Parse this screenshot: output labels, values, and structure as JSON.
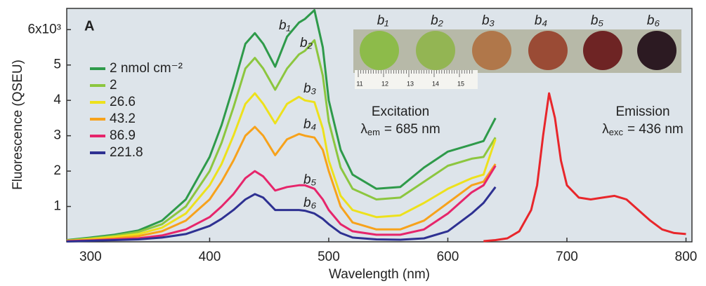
{
  "chart_data": {
    "type": "line",
    "ylabel": "Fluorescence (QSEU)",
    "xlabel": "Wavelength (nm)",
    "xlim": [
      280,
      805
    ],
    "xticks": [
      300,
      400,
      500,
      600,
      700,
      800
    ],
    "ylim": [
      0,
      6.6
    ],
    "yticks": [
      1,
      2,
      3,
      4,
      5,
      {
        "value": 6,
        "label": "6x10³"
      }
    ],
    "panel_label": "A",
    "curve_labels": [
      "b₁",
      "b₂",
      "b₃",
      "b₄",
      "b₅",
      "b₆"
    ],
    "excitation": {
      "title": "Excitation",
      "symbol": "λ",
      "subscript": "em",
      "value": "= 685 nm"
    },
    "emission": {
      "title": "Emission",
      "symbol": "λ",
      "subscript": "exc",
      "value": "= 436 nm"
    },
    "inset": {
      "labels": [
        "b₁",
        "b₂",
        "b₃",
        "b₄",
        "b₅",
        "b₆"
      ],
      "ruler_labels": [
        "11",
        "12",
        "13",
        "14",
        "15"
      ]
    },
    "series": [
      {
        "name": "2 nmol cm⁻²",
        "color": "#2e9a4a",
        "x": [
          280,
          300,
          320,
          340,
          360,
          380,
          400,
          410,
          420,
          430,
          438,
          445,
          455,
          465,
          475,
          480,
          488,
          495,
          500,
          510,
          520,
          540,
          560,
          580,
          600,
          620,
          630,
          640
        ],
        "values": [
          0.05,
          0.12,
          0.2,
          0.32,
          0.6,
          1.2,
          2.4,
          3.3,
          4.4,
          5.6,
          5.9,
          5.6,
          4.95,
          5.8,
          6.2,
          6.3,
          6.55,
          5.5,
          4.0,
          2.6,
          1.9,
          1.5,
          1.55,
          2.1,
          2.55,
          2.75,
          2.85,
          3.5
        ]
      },
      {
        "name": "2",
        "color": "#8cc63f",
        "x": [
          280,
          300,
          320,
          340,
          360,
          380,
          400,
          410,
          420,
          430,
          438,
          445,
          455,
          465,
          475,
          480,
          488,
          495,
          500,
          510,
          520,
          540,
          560,
          580,
          600,
          620,
          630,
          640
        ],
        "values": [
          0.04,
          0.1,
          0.17,
          0.28,
          0.5,
          1.0,
          2.0,
          2.8,
          3.8,
          4.9,
          5.2,
          4.9,
          4.3,
          4.9,
          5.3,
          5.4,
          5.7,
          4.7,
          3.4,
          2.1,
          1.5,
          1.2,
          1.25,
          1.7,
          2.15,
          2.35,
          2.4,
          2.95
        ]
      },
      {
        "name": "26.6",
        "color": "#ede11c",
        "x": [
          280,
          300,
          320,
          340,
          360,
          380,
          400,
          410,
          420,
          430,
          438,
          445,
          455,
          465,
          475,
          480,
          488,
          495,
          500,
          510,
          520,
          540,
          560,
          580,
          600,
          620,
          630,
          640
        ],
        "values": [
          0.03,
          0.08,
          0.14,
          0.22,
          0.4,
          0.8,
          1.6,
          2.2,
          3.0,
          3.9,
          4.2,
          3.9,
          3.35,
          3.9,
          4.1,
          4.0,
          3.95,
          3.2,
          2.3,
          1.3,
          0.9,
          0.7,
          0.75,
          1.1,
          1.5,
          1.8,
          1.9,
          2.9
        ]
      },
      {
        "name": "43.2",
        "color": "#f7a21b",
        "x": [
          280,
          300,
          320,
          340,
          360,
          380,
          400,
          410,
          420,
          430,
          438,
          445,
          455,
          465,
          475,
          480,
          488,
          495,
          500,
          510,
          520,
          540,
          560,
          580,
          600,
          620,
          630,
          640
        ],
        "values": [
          0.03,
          0.06,
          0.1,
          0.16,
          0.3,
          0.6,
          1.2,
          1.7,
          2.3,
          3.0,
          3.25,
          3.0,
          2.45,
          2.9,
          3.05,
          3.0,
          2.95,
          2.6,
          2.0,
          1.0,
          0.55,
          0.35,
          0.35,
          0.6,
          1.1,
          1.6,
          1.7,
          2.2
        ]
      },
      {
        "name": "86.9",
        "color": "#e6256b",
        "x": [
          280,
          300,
          320,
          340,
          360,
          380,
          400,
          410,
          420,
          430,
          438,
          445,
          455,
          465,
          475,
          480,
          488,
          495,
          500,
          510,
          520,
          540,
          560,
          580,
          600,
          620,
          630,
          640
        ],
        "values": [
          0.02,
          0.04,
          0.07,
          0.1,
          0.18,
          0.35,
          0.7,
          1.0,
          1.35,
          1.8,
          2.0,
          1.85,
          1.45,
          1.55,
          1.6,
          1.6,
          1.5,
          1.2,
          0.9,
          0.5,
          0.3,
          0.2,
          0.2,
          0.35,
          0.8,
          1.4,
          1.6,
          2.15
        ]
      },
      {
        "name": "221.8",
        "color": "#2e3192",
        "x": [
          280,
          300,
          320,
          340,
          360,
          380,
          400,
          410,
          420,
          430,
          438,
          445,
          455,
          465,
          475,
          480,
          488,
          495,
          500,
          510,
          520,
          540,
          560,
          580,
          600,
          620,
          630,
          640
        ],
        "values": [
          0.01,
          0.03,
          0.05,
          0.07,
          0.12,
          0.22,
          0.45,
          0.65,
          0.9,
          1.2,
          1.35,
          1.25,
          0.9,
          0.9,
          0.9,
          0.88,
          0.8,
          0.65,
          0.5,
          0.25,
          0.12,
          0.07,
          0.06,
          0.1,
          0.3,
          0.8,
          1.1,
          1.55
        ]
      },
      {
        "color": "#e8262b",
        "x": [
          630,
          640,
          650,
          660,
          670,
          675,
          680,
          685,
          690,
          695,
          700,
          710,
          720,
          730,
          740,
          750,
          760,
          770,
          780,
          790,
          800
        ],
        "values": [
          0.02,
          0.05,
          0.1,
          0.3,
          0.9,
          1.6,
          3.0,
          4.2,
          3.5,
          2.3,
          1.6,
          1.25,
          1.2,
          1.25,
          1.3,
          1.2,
          0.9,
          0.6,
          0.35,
          0.25,
          0.22
        ]
      }
    ]
  }
}
